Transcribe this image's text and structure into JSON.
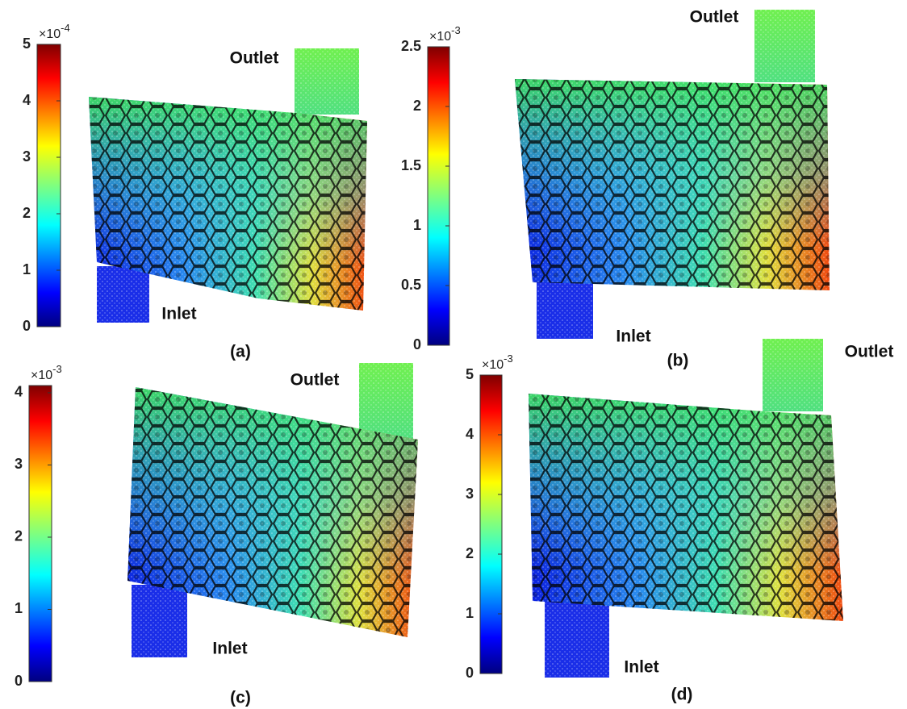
{
  "panels": [
    {
      "label": "(a)",
      "outlet": "Outlet",
      "inlet": "Inlet",
      "colorbar": {
        "multiplier": "×10",
        "exponent": "-4",
        "lim": [
          0,
          5
        ],
        "ticks": [
          0,
          1,
          2,
          3,
          4,
          5
        ]
      }
    },
    {
      "label": "(b)",
      "outlet": "Outlet",
      "inlet": "Inlet",
      "colorbar": {
        "multiplier": "×10",
        "exponent": "-3",
        "lim": [
          0,
          2.5
        ],
        "ticks": [
          0,
          0.5,
          1,
          1.5,
          2,
          2.5
        ]
      }
    },
    {
      "label": "(c)",
      "outlet": "Outlet",
      "inlet": "Inlet",
      "colorbar": {
        "multiplier": "×10",
        "exponent": "-3",
        "lim": [
          0,
          4.1
        ],
        "ticks": [
          0,
          1,
          2,
          3,
          4
        ]
      }
    },
    {
      "label": "(d)",
      "outlet": "Outlet",
      "inlet": "Inlet",
      "colorbar": {
        "multiplier": "×10",
        "exponent": "-3",
        "lim": [
          0,
          5
        ],
        "ticks": [
          0,
          1,
          2,
          3,
          4,
          5
        ]
      }
    }
  ]
}
